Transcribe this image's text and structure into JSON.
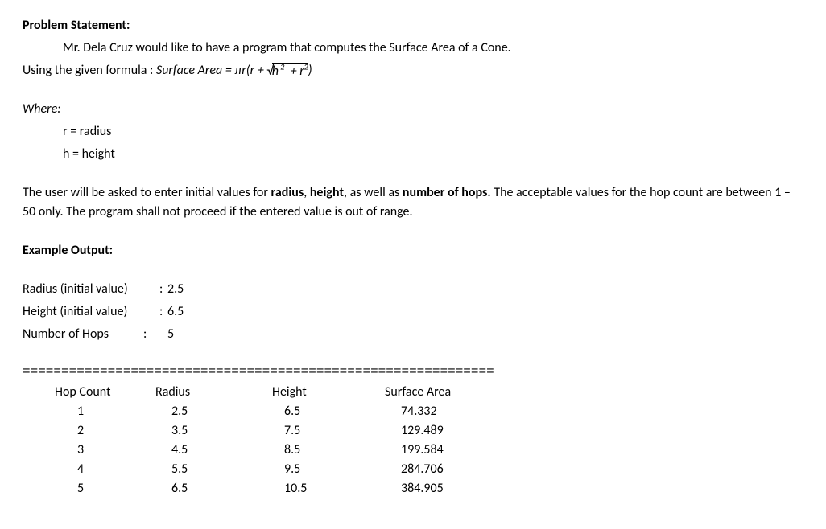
{
  "heading": "Problem Statement:",
  "intro": {
    "line1_indent": "Mr. Dela Cruz would like to have a program that computes the Surface Area of a Cone.",
    "line2_prefix": "Using the given formula  :  ",
    "formula_lhs": "Surface Area",
    "formula_eq": " = ",
    "formula_pir": "πr(r + ",
    "formula_sqrt_h": "h",
    "formula_sqrt_plus": "  + ",
    "formula_sqrt_r": "r",
    "formula_close": ")"
  },
  "where": {
    "heading": "Where:",
    "r_line": "r = radius",
    "h_line": "h = height"
  },
  "description": {
    "part1": "The user will be asked to enter initial values for ",
    "b1": "radius",
    "comma1": ", ",
    "b2": "height",
    "part2": ", as well as ",
    "b3": "number of hops.",
    "part3": " The acceptable values for the hop count are between 1 – 50 only. The program shall not proceed if the entered value is out of range."
  },
  "example_heading": "Example Output:",
  "inputs": {
    "radius_label": "Radius (initial value)",
    "radius_value": "2.5",
    "height_label": "Height (initial value)",
    "height_value": "6.5",
    "hops_label": "Number of Hops",
    "hops_value": "5",
    "colon": ":"
  },
  "divider": "=============================================================",
  "table": {
    "headers": {
      "hop": "Hop Count",
      "radius": "Radius",
      "height": "Height",
      "sa": "Surface Area"
    },
    "rows": [
      {
        "hop": "1",
        "radius": "2.5",
        "height": "6.5",
        "sa": "74.332"
      },
      {
        "hop": "2",
        "radius": "3.5",
        "height": "7.5",
        "sa": "129.489"
      },
      {
        "hop": "3",
        "radius": "4.5",
        "height": "8.5",
        "sa": "199.584"
      },
      {
        "hop": "4",
        "radius": "5.5",
        "height": "9.5",
        "sa": "284.706"
      },
      {
        "hop": "5",
        "radius": "6.5",
        "height": "10.5",
        "sa": "384.905"
      }
    ]
  },
  "styling": {
    "text_color": "#000000",
    "background_color": "#ffffff",
    "font_family": "Calibri",
    "body_fontsize": 16,
    "bold_weight": "bold"
  }
}
